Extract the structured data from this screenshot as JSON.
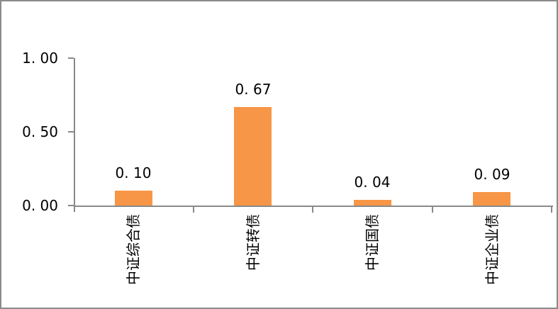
{
  "figure": {
    "background": "#FFFFFF",
    "border_color": "#8A8A8A"
  },
  "chart_data": {
    "type": "bar",
    "title": "",
    "xlabel": "",
    "ylabel": "",
    "categories": [
      "中证综合债",
      "中证转债",
      "中证国债",
      "中证企业债"
    ],
    "values": [
      0.1,
      0.67,
      0.04,
      0.09
    ],
    "value_labels": [
      "0. 10",
      "0. 67",
      "0. 04",
      "0. 09"
    ],
    "ylim": [
      0,
      1.0
    ],
    "yticks": [
      1.0,
      0.5,
      0.0
    ],
    "ytick_labels": [
      "1. 00",
      "0. 50",
      "0. 00"
    ],
    "grid": false,
    "legend": "none",
    "bar_color": "#F79646",
    "axis_color": "#898989",
    "label_color": "#000000"
  }
}
